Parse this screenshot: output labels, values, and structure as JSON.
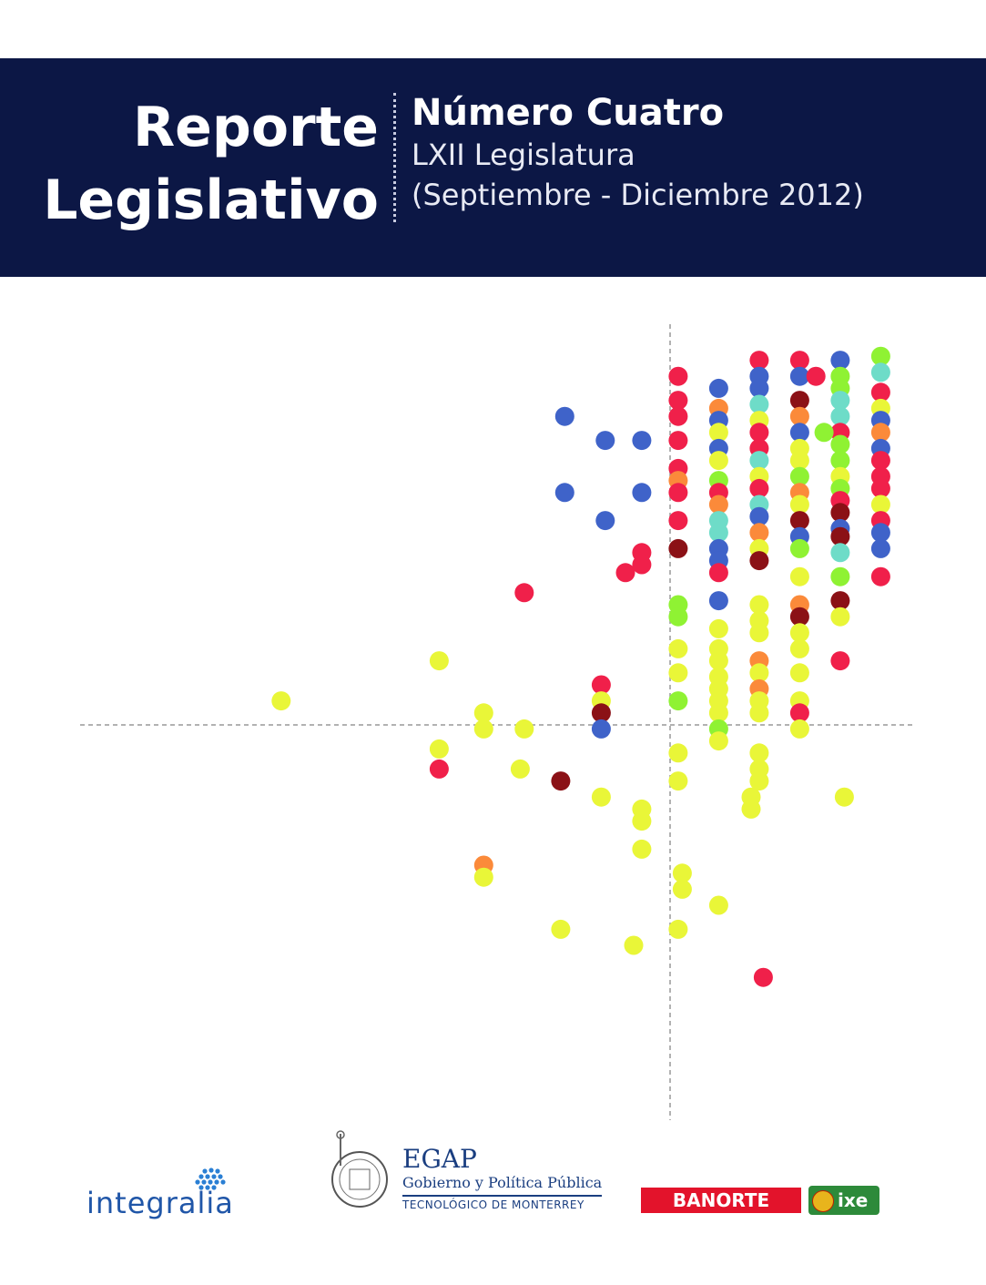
{
  "header": {
    "title_line1": "Reporte",
    "title_line2": "Legislativo",
    "issue": "Número Cuatro",
    "legislature": "LXII Legislatura",
    "period": "(Septiembre - Diciembre 2012)"
  },
  "colors": {
    "banner": "#0c1745",
    "red": "#f0204a",
    "blue": "#3f63c9",
    "yellow": "#e9f638",
    "green": "#8ff233",
    "orange": "#fb8a3a",
    "teal": "#6edcc8",
    "maroon": "#8b1116"
  },
  "chart_data": {
    "type": "scatter",
    "title": "",
    "xlabel": "",
    "ylabel": "",
    "axes": "crossing dashed lines, no ticks",
    "xlim": [
      -10,
      10
    ],
    "ylim": [
      -10,
      10
    ],
    "points": [
      {
        "x": 0.2,
        "y": 8.7,
        "c": "red"
      },
      {
        "x": 0.2,
        "y": 8.1,
        "c": "red"
      },
      {
        "x": 0.2,
        "y": 7.7,
        "c": "red"
      },
      {
        "x": 0.2,
        "y": 7.1,
        "c": "red"
      },
      {
        "x": 0.2,
        "y": 6.4,
        "c": "red"
      },
      {
        "x": 0.2,
        "y": 6.1,
        "c": "orange"
      },
      {
        "x": 0.2,
        "y": 5.8,
        "c": "red"
      },
      {
        "x": 0.2,
        "y": 5.1,
        "c": "red"
      },
      {
        "x": 0.2,
        "y": 4.4,
        "c": "maroon"
      },
      {
        "x": 0.2,
        "y": 3.0,
        "c": "green"
      },
      {
        "x": 0.2,
        "y": 2.7,
        "c": "green"
      },
      {
        "x": 0.2,
        "y": 1.9,
        "c": "yellow"
      },
      {
        "x": 0.2,
        "y": 1.3,
        "c": "yellow"
      },
      {
        "x": 0.2,
        "y": 0.6,
        "c": "green"
      },
      {
        "x": 0.2,
        "y": -0.7,
        "c": "yellow"
      },
      {
        "x": 0.2,
        "y": -1.4,
        "c": "yellow"
      },
      {
        "x": 0.3,
        "y": -3.7,
        "c": "yellow"
      },
      {
        "x": 0.3,
        "y": -4.1,
        "c": "yellow"
      },
      {
        "x": 0.2,
        "y": -5.1,
        "c": "yellow"
      },
      {
        "x": 1.2,
        "y": 8.4,
        "c": "blue"
      },
      {
        "x": 1.2,
        "y": 7.9,
        "c": "orange"
      },
      {
        "x": 1.2,
        "y": 7.6,
        "c": "blue"
      },
      {
        "x": 1.2,
        "y": 7.3,
        "c": "yellow"
      },
      {
        "x": 1.2,
        "y": 6.9,
        "c": "blue"
      },
      {
        "x": 1.2,
        "y": 6.6,
        "c": "yellow"
      },
      {
        "x": 1.2,
        "y": 6.1,
        "c": "green"
      },
      {
        "x": 1.2,
        "y": 5.8,
        "c": "red"
      },
      {
        "x": 1.2,
        "y": 5.5,
        "c": "orange"
      },
      {
        "x": 1.2,
        "y": 5.1,
        "c": "teal"
      },
      {
        "x": 1.2,
        "y": 4.8,
        "c": "teal"
      },
      {
        "x": 1.2,
        "y": 4.4,
        "c": "blue"
      },
      {
        "x": 1.2,
        "y": 4.1,
        "c": "blue"
      },
      {
        "x": 1.2,
        "y": 3.8,
        "c": "red"
      },
      {
        "x": 1.2,
        "y": 3.1,
        "c": "blue"
      },
      {
        "x": 1.2,
        "y": 2.4,
        "c": "yellow"
      },
      {
        "x": 1.2,
        "y": 1.9,
        "c": "yellow"
      },
      {
        "x": 1.2,
        "y": 1.6,
        "c": "yellow"
      },
      {
        "x": 1.2,
        "y": 1.2,
        "c": "yellow"
      },
      {
        "x": 1.2,
        "y": 0.9,
        "c": "yellow"
      },
      {
        "x": 1.2,
        "y": 0.6,
        "c": "yellow"
      },
      {
        "x": 1.2,
        "y": 0.3,
        "c": "yellow"
      },
      {
        "x": 1.2,
        "y": -0.1,
        "c": "green"
      },
      {
        "x": 1.2,
        "y": -0.4,
        "c": "yellow"
      },
      {
        "x": 1.2,
        "y": -4.5,
        "c": "yellow"
      },
      {
        "x": 2.2,
        "y": 9.1,
        "c": "red"
      },
      {
        "x": 2.2,
        "y": 8.7,
        "c": "blue"
      },
      {
        "x": 2.2,
        "y": 8.4,
        "c": "blue"
      },
      {
        "x": 2.2,
        "y": 8.0,
        "c": "teal"
      },
      {
        "x": 2.2,
        "y": 7.6,
        "c": "yellow"
      },
      {
        "x": 2.2,
        "y": 7.3,
        "c": "red"
      },
      {
        "x": 2.2,
        "y": 6.9,
        "c": "red"
      },
      {
        "x": 2.2,
        "y": 6.6,
        "c": "teal"
      },
      {
        "x": 2.2,
        "y": 6.2,
        "c": "yellow"
      },
      {
        "x": 2.2,
        "y": 5.9,
        "c": "red"
      },
      {
        "x": 2.2,
        "y": 5.5,
        "c": "teal"
      },
      {
        "x": 2.2,
        "y": 5.2,
        "c": "blue"
      },
      {
        "x": 2.2,
        "y": 4.8,
        "c": "orange"
      },
      {
        "x": 2.2,
        "y": 4.4,
        "c": "yellow"
      },
      {
        "x": 2.2,
        "y": 4.1,
        "c": "maroon"
      },
      {
        "x": 2.2,
        "y": 3.0,
        "c": "yellow"
      },
      {
        "x": 2.2,
        "y": 2.6,
        "c": "yellow"
      },
      {
        "x": 2.2,
        "y": 2.3,
        "c": "yellow"
      },
      {
        "x": 2.2,
        "y": 1.6,
        "c": "orange"
      },
      {
        "x": 2.2,
        "y": 1.3,
        "c": "yellow"
      },
      {
        "x": 2.2,
        "y": 0.9,
        "c": "orange"
      },
      {
        "x": 2.2,
        "y": 0.6,
        "c": "yellow"
      },
      {
        "x": 2.2,
        "y": 0.3,
        "c": "yellow"
      },
      {
        "x": 2.2,
        "y": -0.7,
        "c": "yellow"
      },
      {
        "x": 2.2,
        "y": -1.1,
        "c": "yellow"
      },
      {
        "x": 2.2,
        "y": -1.4,
        "c": "yellow"
      },
      {
        "x": 2.0,
        "y": -1.8,
        "c": "yellow"
      },
      {
        "x": 2.0,
        "y": -2.1,
        "c": "yellow"
      },
      {
        "x": 2.3,
        "y": -6.3,
        "c": "red"
      },
      {
        "x": 3.2,
        "y": 9.1,
        "c": "red"
      },
      {
        "x": 3.2,
        "y": 8.7,
        "c": "blue"
      },
      {
        "x": 3.6,
        "y": 8.7,
        "c": "red"
      },
      {
        "x": 3.2,
        "y": 8.1,
        "c": "maroon"
      },
      {
        "x": 3.2,
        "y": 7.7,
        "c": "orange"
      },
      {
        "x": 3.2,
        "y": 7.3,
        "c": "blue"
      },
      {
        "x": 3.2,
        "y": 6.9,
        "c": "yellow"
      },
      {
        "x": 3.2,
        "y": 6.6,
        "c": "yellow"
      },
      {
        "x": 3.2,
        "y": 6.2,
        "c": "green"
      },
      {
        "x": 3.2,
        "y": 5.8,
        "c": "orange"
      },
      {
        "x": 3.2,
        "y": 5.5,
        "c": "yellow"
      },
      {
        "x": 3.2,
        "y": 5.1,
        "c": "maroon"
      },
      {
        "x": 3.2,
        "y": 4.7,
        "c": "blue"
      },
      {
        "x": 3.2,
        "y": 4.4,
        "c": "green"
      },
      {
        "x": 3.2,
        "y": 3.7,
        "c": "yellow"
      },
      {
        "x": 3.2,
        "y": 3.0,
        "c": "orange"
      },
      {
        "x": 3.2,
        "y": 2.7,
        "c": "maroon"
      },
      {
        "x": 3.2,
        "y": 2.3,
        "c": "yellow"
      },
      {
        "x": 3.2,
        "y": 1.9,
        "c": "yellow"
      },
      {
        "x": 3.2,
        "y": 1.3,
        "c": "yellow"
      },
      {
        "x": 3.2,
        "y": 0.6,
        "c": "yellow"
      },
      {
        "x": 3.2,
        "y": 0.3,
        "c": "red"
      },
      {
        "x": 3.2,
        "y": -0.1,
        "c": "yellow"
      },
      {
        "x": 4.2,
        "y": 9.1,
        "c": "blue"
      },
      {
        "x": 4.2,
        "y": 8.7,
        "c": "green"
      },
      {
        "x": 4.2,
        "y": 8.4,
        "c": "green"
      },
      {
        "x": 4.2,
        "y": 8.1,
        "c": "teal"
      },
      {
        "x": 4.2,
        "y": 7.7,
        "c": "teal"
      },
      {
        "x": 4.2,
        "y": 7.3,
        "c": "red"
      },
      {
        "x": 3.8,
        "y": 7.3,
        "c": "green"
      },
      {
        "x": 4.2,
        "y": 7.0,
        "c": "green"
      },
      {
        "x": 4.2,
        "y": 6.6,
        "c": "green"
      },
      {
        "x": 4.2,
        "y": 6.2,
        "c": "yellow"
      },
      {
        "x": 4.2,
        "y": 5.9,
        "c": "green"
      },
      {
        "x": 4.2,
        "y": 5.6,
        "c": "red"
      },
      {
        "x": 4.2,
        "y": 5.3,
        "c": "maroon"
      },
      {
        "x": 4.2,
        "y": 4.9,
        "c": "blue"
      },
      {
        "x": 4.2,
        "y": 4.7,
        "c": "maroon"
      },
      {
        "x": 4.2,
        "y": 4.3,
        "c": "teal"
      },
      {
        "x": 4.2,
        "y": 3.7,
        "c": "green"
      },
      {
        "x": 4.2,
        "y": 3.1,
        "c": "maroon"
      },
      {
        "x": 4.2,
        "y": 2.7,
        "c": "yellow"
      },
      {
        "x": 4.2,
        "y": 1.6,
        "c": "red"
      },
      {
        "x": 4.3,
        "y": -1.8,
        "c": "yellow"
      },
      {
        "x": 5.2,
        "y": 9.2,
        "c": "green"
      },
      {
        "x": 5.2,
        "y": 8.8,
        "c": "teal"
      },
      {
        "x": 5.2,
        "y": 8.3,
        "c": "red"
      },
      {
        "x": 5.2,
        "y": 7.9,
        "c": "yellow"
      },
      {
        "x": 5.2,
        "y": 7.6,
        "c": "blue"
      },
      {
        "x": 5.2,
        "y": 7.3,
        "c": "orange"
      },
      {
        "x": 5.2,
        "y": 6.9,
        "c": "blue"
      },
      {
        "x": 5.2,
        "y": 6.6,
        "c": "red"
      },
      {
        "x": 5.2,
        "y": 6.2,
        "c": "red"
      },
      {
        "x": 5.2,
        "y": 5.9,
        "c": "red"
      },
      {
        "x": 5.2,
        "y": 5.5,
        "c": "yellow"
      },
      {
        "x": 5.2,
        "y": 5.1,
        "c": "red"
      },
      {
        "x": 5.2,
        "y": 4.8,
        "c": "blue"
      },
      {
        "x": 5.2,
        "y": 4.4,
        "c": "blue"
      },
      {
        "x": 5.2,
        "y": 3.7,
        "c": "red"
      },
      {
        "x": -2.6,
        "y": 7.7,
        "c": "blue"
      },
      {
        "x": -1.6,
        "y": 7.1,
        "c": "blue"
      },
      {
        "x": -0.7,
        "y": 7.1,
        "c": "blue"
      },
      {
        "x": -2.6,
        "y": 5.8,
        "c": "blue"
      },
      {
        "x": -0.7,
        "y": 5.8,
        "c": "blue"
      },
      {
        "x": -1.6,
        "y": 5.1,
        "c": "blue"
      },
      {
        "x": -0.7,
        "y": 4.3,
        "c": "red"
      },
      {
        "x": -0.7,
        "y": 4.0,
        "c": "red"
      },
      {
        "x": -1.1,
        "y": 3.8,
        "c": "red"
      },
      {
        "x": -3.6,
        "y": 3.3,
        "c": "red"
      },
      {
        "x": -5.7,
        "y": 1.6,
        "c": "yellow"
      },
      {
        "x": -9.6,
        "y": 0.6,
        "c": "yellow"
      },
      {
        "x": -1.7,
        "y": 1.0,
        "c": "red"
      },
      {
        "x": -1.7,
        "y": 0.6,
        "c": "yellow"
      },
      {
        "x": -1.7,
        "y": 0.3,
        "c": "maroon"
      },
      {
        "x": -1.7,
        "y": -0.1,
        "c": "blue"
      },
      {
        "x": -4.6,
        "y": 0.3,
        "c": "yellow"
      },
      {
        "x": -4.6,
        "y": -0.1,
        "c": "yellow"
      },
      {
        "x": -3.6,
        "y": -0.1,
        "c": "yellow"
      },
      {
        "x": -5.7,
        "y": -0.6,
        "c": "yellow"
      },
      {
        "x": -5.7,
        "y": -1.1,
        "c": "red"
      },
      {
        "x": -3.7,
        "y": -1.1,
        "c": "yellow"
      },
      {
        "x": -2.7,
        "y": -1.4,
        "c": "maroon"
      },
      {
        "x": -1.7,
        "y": -1.8,
        "c": "yellow"
      },
      {
        "x": -0.7,
        "y": -2.1,
        "c": "yellow"
      },
      {
        "x": -0.7,
        "y": -2.4,
        "c": "yellow"
      },
      {
        "x": -0.7,
        "y": -3.1,
        "c": "yellow"
      },
      {
        "x": -4.6,
        "y": -3.5,
        "c": "orange"
      },
      {
        "x": -4.6,
        "y": -3.8,
        "c": "yellow"
      },
      {
        "x": -2.7,
        "y": -5.1,
        "c": "yellow"
      },
      {
        "x": -0.9,
        "y": -5.5,
        "c": "yellow"
      }
    ]
  },
  "footer": {
    "integralia": "integralia",
    "egap_title": "EGAP",
    "egap_subtitle": "Gobierno y Política Pública",
    "egap_institution": "TECNOLÓGICO DE MONTERREY",
    "banorte": "BANORTE",
    "ixe": "ixe"
  }
}
